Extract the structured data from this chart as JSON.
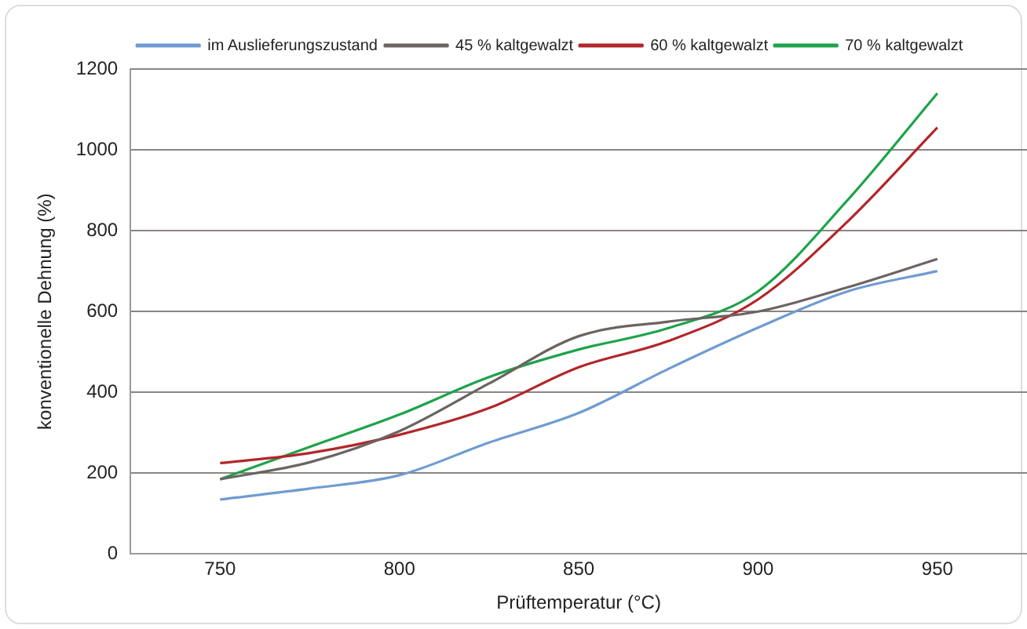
{
  "chart_data": {
    "type": "line",
    "xlabel": "Prüftemperatur (°C)",
    "ylabel": "konventionelle Dehnung (%)",
    "x": [
      750,
      775,
      800,
      825,
      850,
      875,
      900,
      925,
      950
    ],
    "series": [
      {
        "name": "im Auslieferungszustand",
        "color": "#6f9bd1",
        "values": [
          135,
          162,
          195,
          276,
          349,
          458,
          560,
          650,
          700
        ]
      },
      {
        "name": "45 % kaltgewalzt",
        "color": "#6b6461",
        "values": [
          185,
          227,
          304,
          422,
          539,
          575,
          600,
          660,
          730
        ]
      },
      {
        "name": "60 % kaltgewalzt",
        "color": "#b2262a",
        "values": [
          225,
          250,
          295,
          361,
          462,
          527,
          630,
          823,
          1055
        ]
      },
      {
        "name": "70 % kaltgewalzt",
        "color": "#1ea34a",
        "values": [
          185,
          265,
          345,
          438,
          506,
          559,
          650,
          876,
          1140
        ]
      }
    ],
    "xlim": [
      725,
      975
    ],
    "xticks": [
      750,
      800,
      850,
      900,
      950
    ],
    "ylim": [
      0,
      1200
    ],
    "yticks": [
      0,
      200,
      400,
      600,
      800,
      1000,
      1200
    ],
    "grid": "y",
    "legend": "top left",
    "marker": "none",
    "line_style": "solid"
  }
}
